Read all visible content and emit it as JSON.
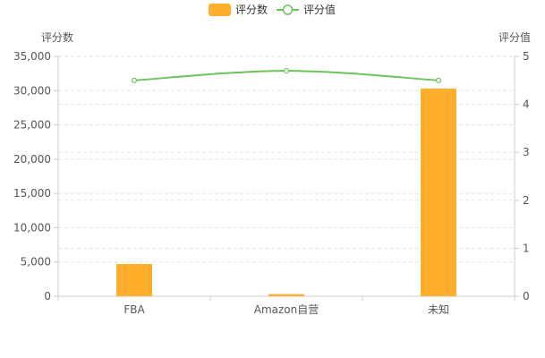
{
  "chart_data": {
    "type": "bar+line",
    "legend": [
      {
        "name": "评分数",
        "kind": "bar",
        "color": "#FFAE2E"
      },
      {
        "name": "评分值",
        "kind": "line",
        "color": "#6CC35D"
      }
    ],
    "legend_position": "top-center",
    "categories": [
      "FBA",
      "Amazon自营",
      "未知"
    ],
    "y_left": {
      "label": "评分数",
      "min": 0,
      "max": 35000,
      "ticks": [
        0,
        5000,
        10000,
        15000,
        20000,
        25000,
        30000,
        35000
      ],
      "tick_labels": [
        "0",
        "5,000",
        "10,000",
        "15,000",
        "20,000",
        "25,000",
        "30,000",
        "35,000"
      ]
    },
    "y_right": {
      "label": "评分值",
      "min": 0,
      "max": 5,
      "ticks": [
        0,
        1,
        2,
        3,
        4,
        5
      ],
      "tick_labels": [
        "0",
        "1",
        "2",
        "3",
        "4",
        "5"
      ]
    },
    "series": [
      {
        "name": "评分数",
        "type": "bar",
        "axis": "left",
        "color": "#FFAE2E",
        "values": [
          4700,
          300,
          30300
        ]
      },
      {
        "name": "评分值",
        "type": "line",
        "axis": "right",
        "color": "#6CC35D",
        "smooth": true,
        "values": [
          4.5,
          4.7,
          4.5
        ]
      }
    ],
    "grid": "dashed-horizontal"
  }
}
